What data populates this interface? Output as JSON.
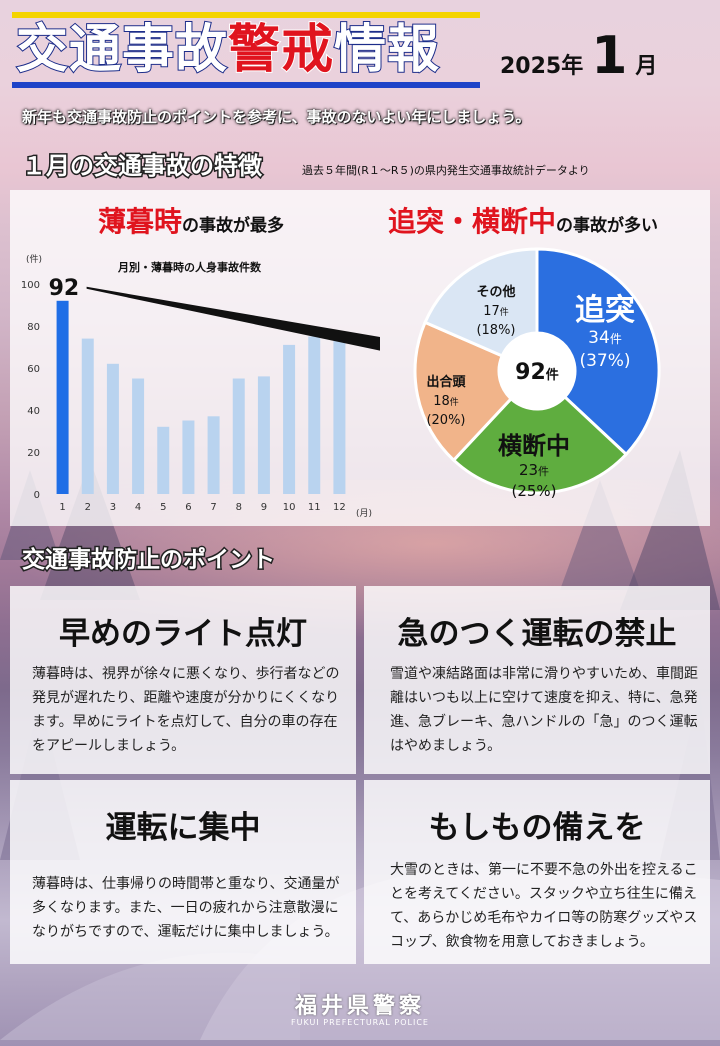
{
  "header": {
    "title_pre": "交通事故",
    "title_warn": "警戒",
    "title_post": "情報",
    "year": "2025年",
    "month": "1",
    "month_unit": "月"
  },
  "lead": "新年も交通事故防止のポイントを参考に、事故のないよい年にしましょう。",
  "features": {
    "heading": "１月の交通事故の特徴",
    "source": "過去５年間(R１～R５)の県内発生交通事故統計データより"
  },
  "left_panel": {
    "head_red": "薄暮時",
    "head_black": "の事故が最多"
  },
  "right_panel": {
    "head_red": "追突・横断中",
    "head_black": "の事故が多い"
  },
  "chart_data": [
    {
      "type": "bar",
      "title": "月別・薄暮時の人身事故件数",
      "ylabel": "(件)",
      "xlabel": "(月)",
      "categories": [
        "1",
        "2",
        "3",
        "4",
        "5",
        "6",
        "7",
        "8",
        "9",
        "10",
        "11",
        "12"
      ],
      "values": [
        92,
        74,
        62,
        55,
        32,
        35,
        37,
        55,
        56,
        71,
        75,
        74
      ],
      "ylim": [
        0,
        100
      ],
      "yticks": [
        "0",
        "20",
        "40",
        "60",
        "80",
        "100"
      ],
      "highlight_label": "92",
      "colors": {
        "highlight": "#1f6ee6",
        "normal": "#b9d3ef"
      }
    },
    {
      "type": "pie",
      "center_value": "92",
      "center_unit": "件",
      "slices": [
        {
          "name": "追突",
          "value": 34,
          "count": "34",
          "unit": "件",
          "pct": "(37%)",
          "color": "#2b6fe0"
        },
        {
          "name": "横断中",
          "value": 23,
          "count": "23",
          "unit": "件",
          "pct": "(25%)",
          "color": "#5fad3f"
        },
        {
          "name": "出合頭",
          "value": 18,
          "count": "18",
          "unit": "件",
          "pct": "(20%)",
          "color": "#f1b48a"
        },
        {
          "name": "その他",
          "value": 17,
          "count": "17",
          "unit": "件",
          "pct": "(18%)",
          "color": "#dae6f4"
        }
      ]
    }
  ],
  "points": {
    "heading": "交通事故防止のポイント",
    "cards": [
      {
        "title": "早めのライト点灯",
        "body": [
          "薄暮時は、視界が徐々に悪くなり、歩行者などの",
          "発見が遅れたり、距離や速度が分かりにくくなり",
          "ます。早めにライトを点灯して、自分の車の存在",
          "をアピールしましょう。"
        ]
      },
      {
        "title": "急のつく運転の禁止",
        "body": [
          "雪道や凍結路面は非常に滑りやすいため、車間距",
          "離はいつも以上に空けて速度を抑え、特に、急発",
          "進、急ブレーキ、急ハンドルの「急」のつく運転",
          "はやめましょう。"
        ]
      },
      {
        "title": "運転に集中",
        "body": [
          "薄暮時は、仕事帰りの時間帯と重なり、交通量が",
          "多くなります。また、一日の疲れから注意散漫に",
          "なりがちですので、運転だけに集中しましょう。"
        ]
      },
      {
        "title": "もしもの備えを",
        "body": [
          "大雪のときは、第一に不要不急の外出を控えるこ",
          "とを考えてください。スタックや立ち往生に備え",
          "て、あらかじめ毛布やカイロ等の防寒グッズやス",
          "コップ、飲食物を用意しておきましょう。"
        ]
      }
    ]
  },
  "footer": {
    "police": "福井県警察",
    "police_en": "FUKUI PREFECTURAL POLICE"
  }
}
